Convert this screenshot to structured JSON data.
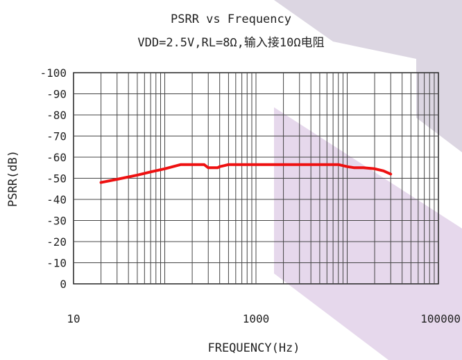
{
  "chart_data": {
    "type": "line",
    "title": "PSRR vs Frequency",
    "subtitle": "VDD=2.5V,RL=8Ω,输入接10Ω电阻",
    "xlabel": "FREQUENCY(Hz)",
    "ylabel": "PSRR(dB)",
    "xscale": "log",
    "xlim": [
      10,
      100000
    ],
    "ylim": [
      0,
      -100
    ],
    "x_tick_labels": [
      "10",
      "1000",
      "100000"
    ],
    "x_tick_values": [
      10,
      1000,
      100000
    ],
    "y_tick_labels": [
      "0",
      "-10",
      "-20",
      "-30",
      "-40",
      "-50",
      "-60",
      "-70",
      "-80",
      "-90",
      "-100"
    ],
    "y_tick_values": [
      0,
      -10,
      -20,
      -30,
      -40,
      -50,
      -60,
      -70,
      -80,
      -90,
      -100
    ],
    "grid": true,
    "legend": "none",
    "series": [
      {
        "color": "#ee1111",
        "x": [
          20,
          30,
          50,
          70,
          100,
          150,
          200,
          250,
          270,
          300,
          350,
          380,
          400,
          450,
          500,
          700,
          1000,
          2000,
          5000,
          8000,
          10000,
          12000,
          15000,
          20000,
          25000,
          30000
        ],
        "y": [
          -48,
          -49.5,
          -51.5,
          -53,
          -54.5,
          -56.5,
          -56.5,
          -56.5,
          -56.5,
          -55,
          -55,
          -55,
          -55.5,
          -56,
          -56.5,
          -56.5,
          -56.5,
          -56.5,
          -56.5,
          -56.5,
          -55.5,
          -55,
          -55,
          -54.5,
          -53.5,
          -52
        ]
      }
    ]
  }
}
